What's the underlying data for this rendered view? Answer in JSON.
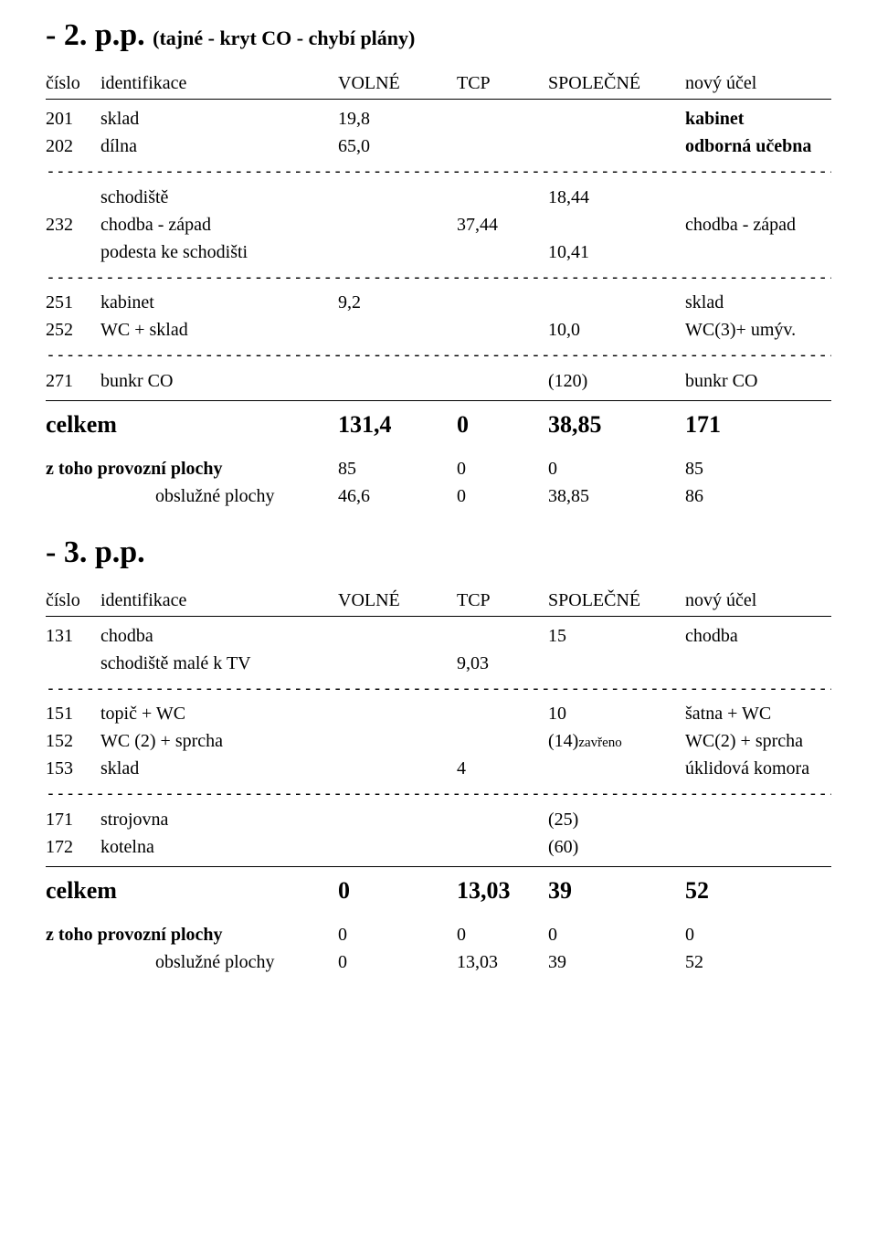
{
  "section1": {
    "heading_main": "- 2. p.p.",
    "heading_sub": "(tajné - kryt CO - chybí plány)",
    "header": {
      "col_num": "číslo",
      "col_id": "identifikace",
      "col_volne": "VOLNÉ",
      "col_tcp": "TCP",
      "col_spol": "SPOLEČNÉ",
      "col_ucel": "nový účel"
    },
    "rows1": [
      {
        "num": "201",
        "id": "sklad",
        "volne": "19,8",
        "tcp": "",
        "spol": "",
        "ucel": "kabinet",
        "bold_ucel": true
      },
      {
        "num": "202",
        "id": "dílna",
        "volne": "65,0",
        "tcp": "",
        "spol": "",
        "ucel": "odborná učebna",
        "bold_ucel": true
      }
    ],
    "rows2": [
      {
        "num": "",
        "id": "schodiště",
        "volne": "",
        "tcp": "",
        "spol": "18,44",
        "ucel": ""
      },
      {
        "num": "232",
        "id": "chodba - západ",
        "volne": "",
        "tcp": "37,44",
        "spol": "",
        "ucel": "chodba - západ"
      },
      {
        "num": "",
        "id": "podesta ke schodišti",
        "volne": "",
        "tcp": "",
        "spol": "10,41",
        "ucel": ""
      }
    ],
    "rows3": [
      {
        "num": "251",
        "id": "kabinet",
        "volne": "9,2",
        "tcp": "",
        "spol": "",
        "ucel": "sklad"
      },
      {
        "num": "252",
        "id": "WC + sklad",
        "volne": "",
        "tcp": "",
        "spol": "10,0",
        "ucel": "WC(3)+ umýv."
      }
    ],
    "rows4": [
      {
        "num": "271",
        "id": "bunkr CO",
        "volne": "",
        "tcp": "",
        "spol": "(120)",
        "ucel": "bunkr CO"
      }
    ],
    "celkem": {
      "label": "celkem",
      "volne": "131,4",
      "tcp": "0",
      "spol": "38,85",
      "ucel": "171"
    },
    "provozni": {
      "label": "z toho provozní plochy",
      "volne": "85",
      "tcp": "0",
      "spol": "0",
      "ucel": "85"
    },
    "obsluzne": {
      "label": "obslužné plochy",
      "volne": "46,6",
      "tcp": "0",
      "spol": "38,85",
      "ucel": "86"
    }
  },
  "section2": {
    "heading_main": "- 3. p.p.",
    "header": {
      "col_num": "číslo",
      "col_id": "identifikace",
      "col_volne": "VOLNÉ",
      "col_tcp": "TCP",
      "col_spol": "SPOLEČNÉ",
      "col_ucel": "nový účel"
    },
    "rows1": [
      {
        "num": "131",
        "id": "chodba",
        "volne": "",
        "tcp": "",
        "spol": "15",
        "ucel": "chodba"
      },
      {
        "num": "",
        "id": "schodiště malé k TV",
        "volne": "",
        "tcp": "9,03",
        "spol": "",
        "ucel": ""
      }
    ],
    "rows2": [
      {
        "num": "151",
        "id": "topič + WC",
        "volne": "",
        "tcp": "",
        "spol": "10",
        "ucel": "šatna + WC"
      },
      {
        "num": "152",
        "id": "WC (2) + sprcha",
        "volne": "",
        "tcp": "",
        "spol": "(14)",
        "spol_small": "zavřeno",
        "ucel": "WC(2) + sprcha"
      },
      {
        "num": "153",
        "id": "sklad",
        "volne": "",
        "tcp": "4",
        "spol": "",
        "ucel": "úklidová komora"
      }
    ],
    "rows3": [
      {
        "num": "171",
        "id": "strojovna",
        "volne": "",
        "tcp": "",
        "spol": "(25)",
        "ucel": ""
      },
      {
        "num": "172",
        "id": "kotelna",
        "volne": "",
        "tcp": "",
        "spol": "(60)",
        "ucel": ""
      }
    ],
    "celkem": {
      "label": "celkem",
      "volne": "0",
      "tcp": "13,03",
      "spol": "39",
      "ucel": "52"
    },
    "provozni": {
      "label": "z toho provozní plochy",
      "volne": "0",
      "tcp": "0",
      "spol": "0",
      "ucel": "0"
    },
    "obsluzne": {
      "label": "obslužné plochy",
      "volne": "0",
      "tcp": "13,03",
      "spol": "39",
      "ucel": "52"
    }
  },
  "separator": "-----------------------------------------------------------------------------------------------------",
  "colors": {
    "text": "#000000",
    "background": "#ffffff",
    "rule": "#000000"
  },
  "typography": {
    "body_family": "Times New Roman",
    "body_size_pt": 15,
    "heading_size_pt": 26,
    "celkem_size_pt": 20
  }
}
